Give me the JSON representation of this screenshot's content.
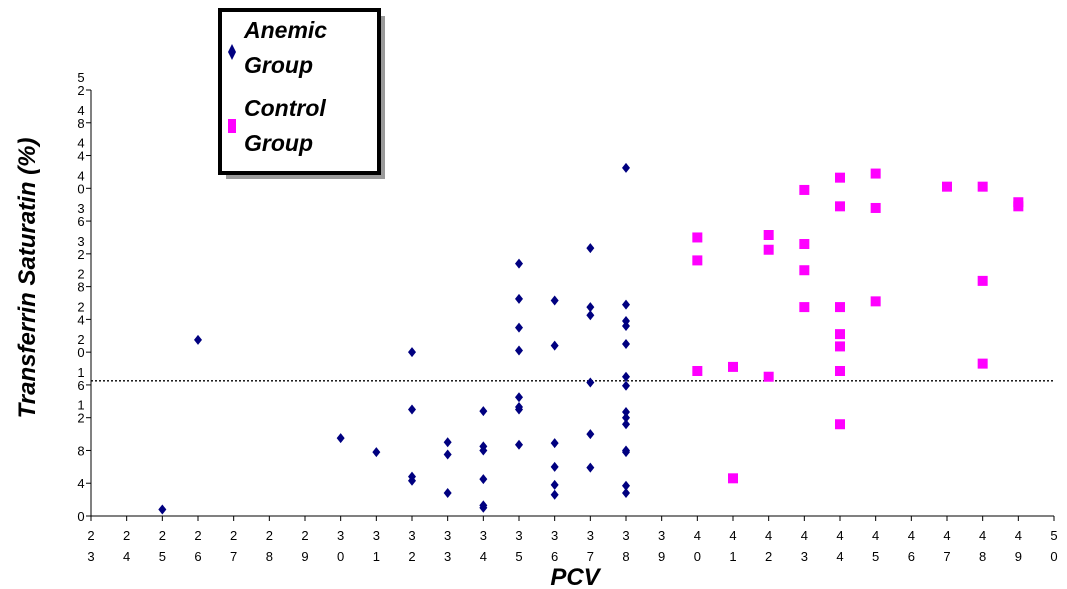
{
  "chart_data": {
    "type": "scatter",
    "xlabel": "PCV",
    "ylabel": "Transferrin Saturatin (%)",
    "xlim": [
      23,
      50
    ],
    "ylim": [
      0,
      52
    ],
    "x_ticks": [
      23,
      24,
      25,
      26,
      27,
      28,
      29,
      30,
      31,
      32,
      33,
      34,
      35,
      36,
      37,
      38,
      39,
      40,
      41,
      42,
      43,
      44,
      45,
      46,
      47,
      48,
      49,
      50
    ],
    "y_ticks": [
      0,
      4,
      8,
      12,
      16,
      20,
      24,
      28,
      32,
      36,
      40,
      44,
      48,
      52
    ],
    "reference_line": {
      "y": 16.5,
      "style": "dotted"
    },
    "legend": {
      "placement": "top-left"
    },
    "series": [
      {
        "name": "Anemic Group",
        "color": "#000080",
        "marker": "diamond",
        "points": [
          [
            25,
            0.8
          ],
          [
            26,
            21.5
          ],
          [
            30,
            9.5
          ],
          [
            31,
            7.8
          ],
          [
            32,
            20.0
          ],
          [
            32,
            13.0
          ],
          [
            32,
            4.8
          ],
          [
            32,
            4.3
          ],
          [
            33,
            9.0
          ],
          [
            33,
            7.5
          ],
          [
            33,
            2.8
          ],
          [
            34,
            12.8
          ],
          [
            34,
            8.5
          ],
          [
            34,
            8.0
          ],
          [
            34,
            4.5
          ],
          [
            34,
            1.3
          ],
          [
            34,
            1.0
          ],
          [
            35,
            30.8
          ],
          [
            35,
            26.5
          ],
          [
            35,
            23.0
          ],
          [
            35,
            20.2
          ],
          [
            35,
            14.5
          ],
          [
            35,
            13.3
          ],
          [
            35,
            13.0
          ],
          [
            35,
            8.7
          ],
          [
            36,
            26.3
          ],
          [
            36,
            20.8
          ],
          [
            36,
            8.9
          ],
          [
            36,
            6.0
          ],
          [
            36,
            3.8
          ],
          [
            36,
            2.6
          ],
          [
            37,
            32.7
          ],
          [
            37,
            25.5
          ],
          [
            37,
            24.5
          ],
          [
            37,
            16.3
          ],
          [
            37,
            10.0
          ],
          [
            37,
            5.9
          ],
          [
            38,
            42.5
          ],
          [
            38,
            25.8
          ],
          [
            38,
            23.8
          ],
          [
            38,
            23.2
          ],
          [
            38,
            21.0
          ],
          [
            38,
            17.0
          ],
          [
            38,
            15.9
          ],
          [
            38,
            12.7
          ],
          [
            38,
            12.0
          ],
          [
            38,
            11.2
          ],
          [
            38,
            8.0
          ],
          [
            38,
            7.8
          ],
          [
            38,
            3.7
          ],
          [
            38,
            2.8
          ]
        ]
      },
      {
        "name": "Control Group",
        "color": "#ff00ff",
        "marker": "square",
        "points": [
          [
            40,
            34.0
          ],
          [
            40,
            31.2
          ],
          [
            40,
            17.7
          ],
          [
            41,
            18.2
          ],
          [
            41,
            4.6
          ],
          [
            42,
            34.3
          ],
          [
            42,
            32.5
          ],
          [
            42,
            17.0
          ],
          [
            43,
            39.8
          ],
          [
            43,
            33.2
          ],
          [
            43,
            30.0
          ],
          [
            43,
            25.5
          ],
          [
            44,
            41.3
          ],
          [
            44,
            37.8
          ],
          [
            44,
            25.5
          ],
          [
            44,
            22.2
          ],
          [
            44,
            20.7
          ],
          [
            44,
            17.7
          ],
          [
            44,
            11.2
          ],
          [
            45,
            41.8
          ],
          [
            45,
            37.6
          ],
          [
            45,
            26.2
          ],
          [
            47,
            40.2
          ],
          [
            48,
            40.2
          ],
          [
            48,
            28.7
          ],
          [
            48,
            18.6
          ],
          [
            49,
            38.3
          ],
          [
            49,
            37.8
          ]
        ]
      }
    ]
  }
}
